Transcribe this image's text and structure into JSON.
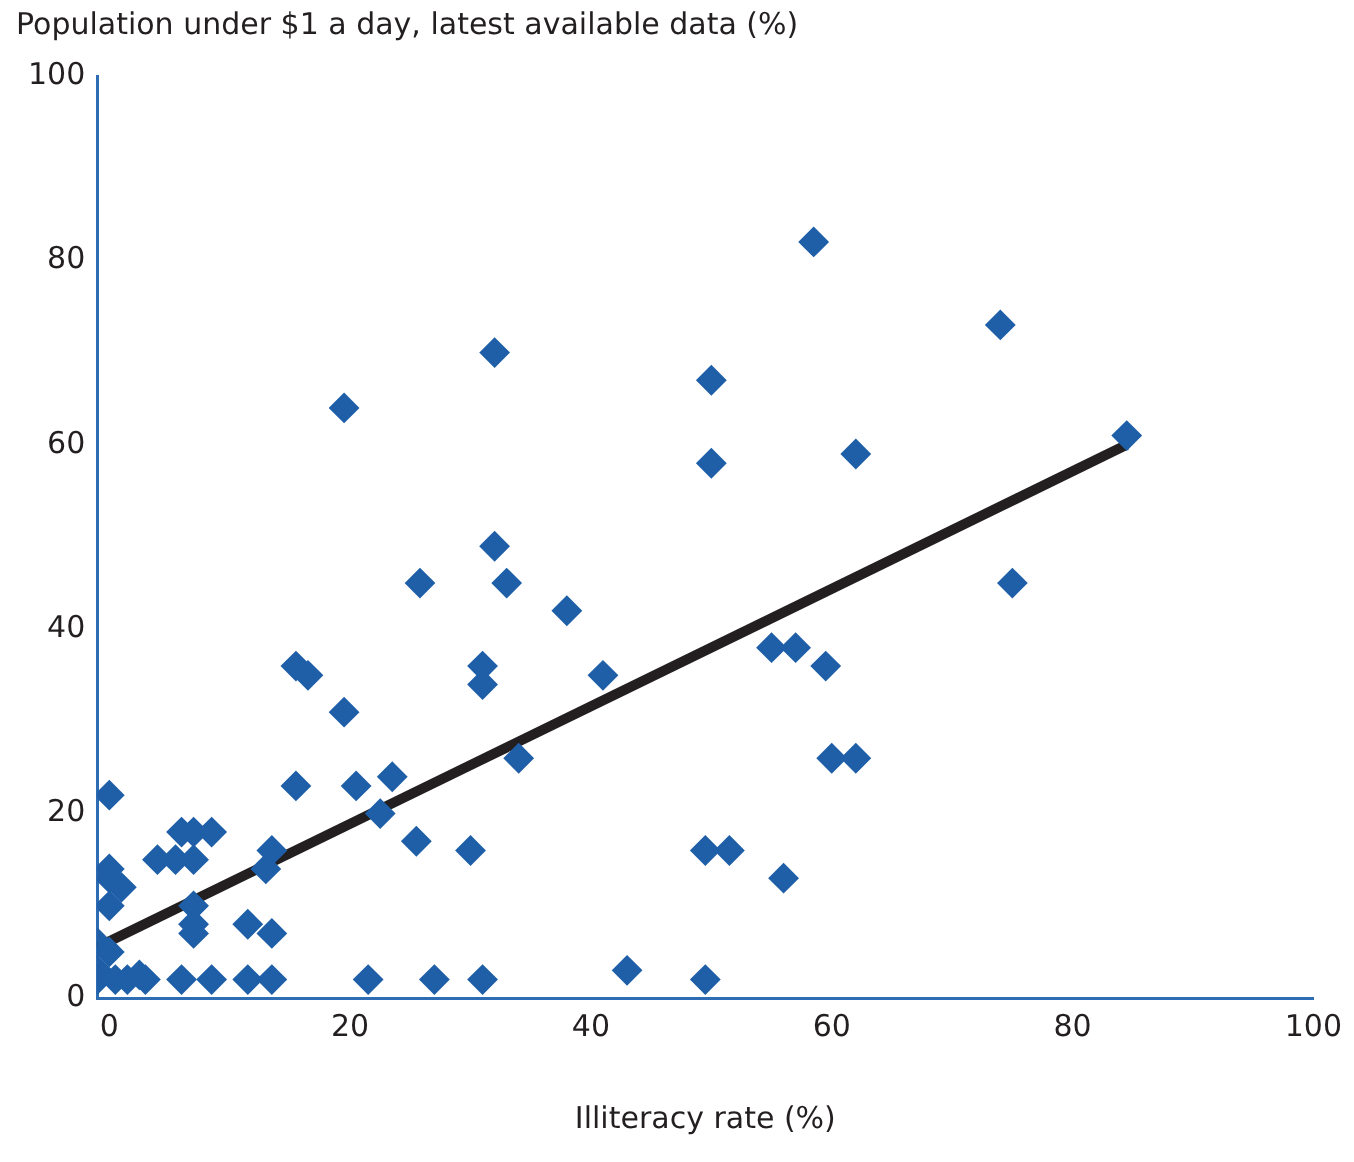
{
  "chart_data": {
    "type": "scatter",
    "ylabel": "Population under $1 a day, latest available data (%)",
    "xlabel": "Illiteracy rate (%)",
    "xlim": [
      -1,
      100
    ],
    "ylim": [
      0,
      100
    ],
    "xticks": [
      0,
      20,
      40,
      60,
      80,
      100
    ],
    "yticks": [
      0,
      20,
      40,
      60,
      80,
      100
    ],
    "grid": false,
    "legend": false,
    "marker": "diamond",
    "series": [
      {
        "type": "scatter",
        "color": "#1f5fa8",
        "x": [
          0,
          0,
          0,
          1,
          0,
          -1,
          0,
          -1,
          -1,
          0.5,
          1.5,
          2.5,
          3,
          4,
          5.5,
          7,
          6,
          7,
          8.5,
          7,
          7,
          7,
          6,
          8.5,
          13,
          13.5,
          11.5,
          13.5,
          11.5,
          13.5,
          15.5,
          16.5,
          19.5,
          19.5,
          15.5,
          20.5,
          23.5,
          22.5,
          25.8,
          25.5,
          21.5,
          27,
          30,
          32,
          32,
          33,
          31,
          31,
          34,
          31,
          38,
          41,
          43,
          49.5,
          49.5,
          51.5,
          50,
          50,
          55,
          57,
          59.5,
          56,
          58.5,
          60,
          62,
          62,
          74,
          75,
          84.5
        ],
        "values": [
          22,
          14,
          13,
          12,
          10,
          6,
          5,
          3,
          2,
          2,
          2,
          2.5,
          2,
          15,
          15,
          15,
          18,
          18,
          18,
          10,
          8,
          7,
          2,
          2,
          14,
          16,
          8,
          7,
          2,
          2,
          36,
          35,
          64,
          31,
          23,
          23,
          24,
          20,
          45,
          17,
          2,
          2,
          16,
          70,
          49,
          45,
          36,
          34,
          26,
          2,
          42,
          35,
          3,
          2,
          16,
          16,
          67,
          58,
          38,
          38,
          36,
          13,
          82,
          26,
          26,
          59,
          73,
          45,
          61
        ]
      },
      {
        "type": "line",
        "color": "#231f20",
        "marker": "none",
        "x": [
          -1,
          84.5
        ],
        "values": [
          5.5,
          60
        ]
      }
    ]
  }
}
